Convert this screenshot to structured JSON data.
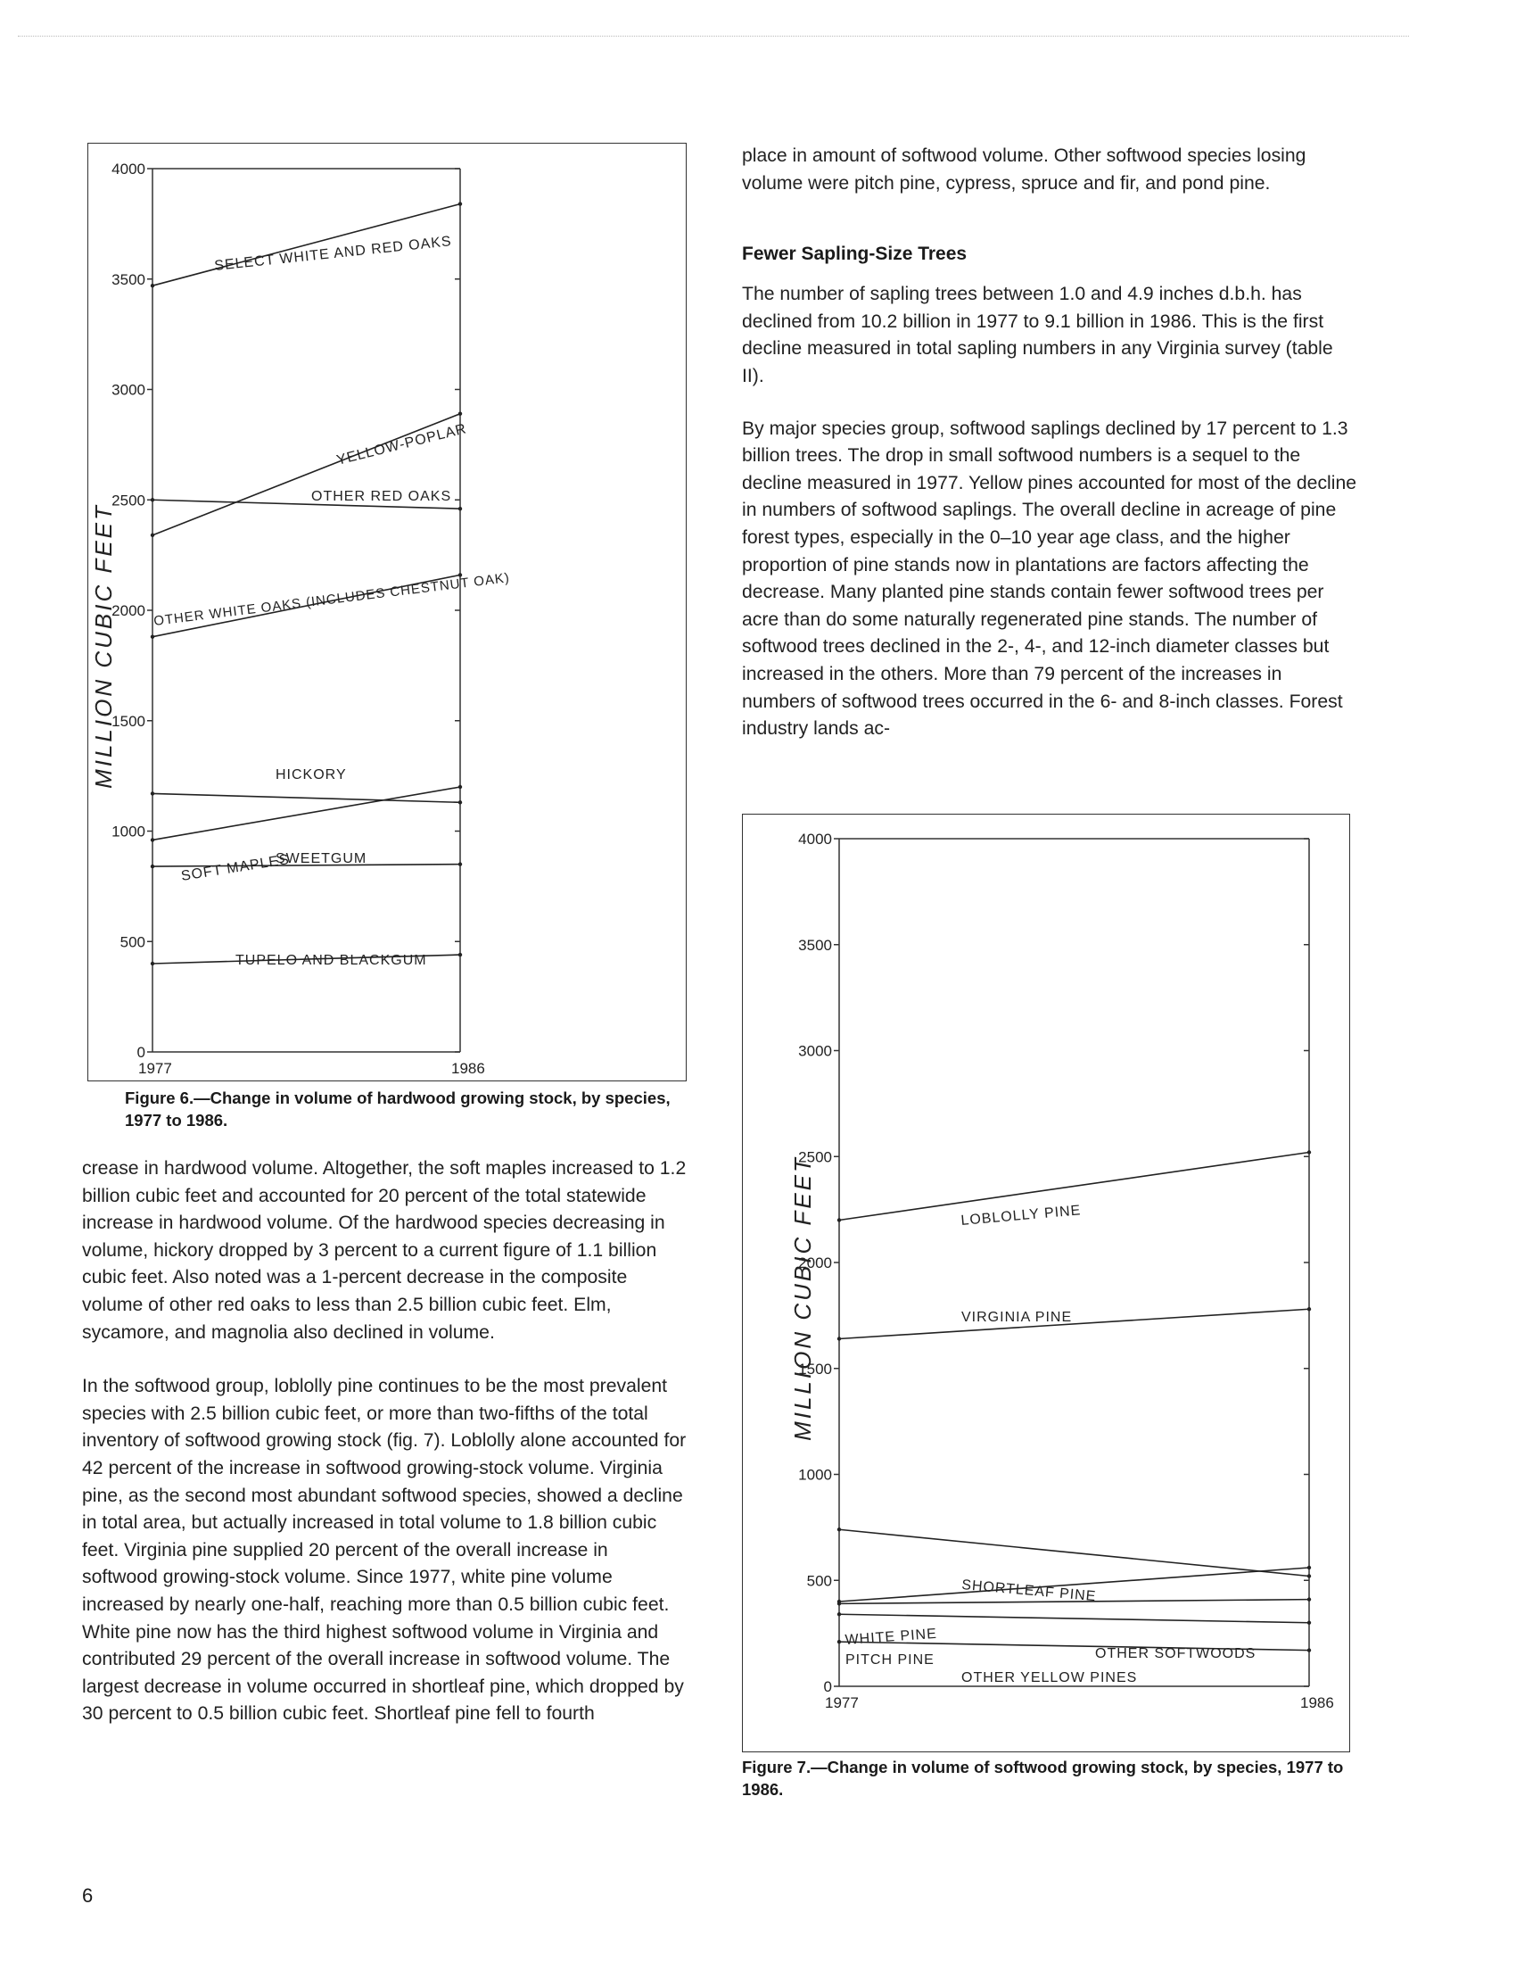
{
  "page_number": "6",
  "figure6": {
    "caption": "Figure 6.—Change in volume of hardwood growing stock, by species, 1977 to 1986."
  },
  "figure7": {
    "caption": "Figure 7.—Change in volume of softwood growing stock, by species, 1977 to 1986."
  },
  "left_column": {
    "paragraphs": [
      "crease in hardwood volume. Altogether, the soft maples increased to 1.2 billion cubic feet and accounted for 20 percent of the total statewide increase in hardwood volume. Of the hardwood species decreasing in volume, hickory dropped by 3 percent to a current figure of 1.1 billion cubic feet. Also noted was a 1-percent decrease in the composite volume of other red oaks to less than 2.5 billion cubic feet. Elm, sycamore, and magnolia also declined in volume.",
      "In the softwood group, loblolly pine continues to be the most prevalent species with 2.5 billion cubic feet, or more than two-fifths of the total inventory of softwood growing stock (fig. 7). Loblolly alone accounted for 42 percent of the increase in softwood growing-stock volume. Virginia pine, as the second most abundant softwood species, showed a decline in total area, but actually increased in total volume to 1.8 billion cubic feet. Virginia pine supplied 20 percent of the overall increase in softwood growing-stock volume. Since 1977, white pine volume increased by nearly one-half, reaching more than 0.5 billion cubic feet. White pine now has the third highest softwood volume in Virginia and contributed 29 percent of the overall increase in softwood volume. The largest decrease in volume occurred in shortleaf pine, which dropped by 30 percent to 0.5 billion cubic feet. Shortleaf pine fell to fourth"
    ]
  },
  "right_column": {
    "paragraph_top": "place in amount of softwood volume. Other softwood species losing volume were pitch pine, cypress, spruce and fir, and pond pine.",
    "subhead": "Fewer Sapling-Size Trees",
    "paragraphs": [
      "The number of sapling trees between 1.0 and 4.9 inches d.b.h. has declined from 10.2 billion in 1977 to 9.1 billion in 1986. This is the first decline measured in total sapling numbers in any Virginia survey (table II).",
      "By major species group, softwood saplings declined by 17 percent to 1.3 billion trees. The drop in small softwood numbers is a sequel to the decline measured in 1977. Yellow pines accounted for most of the decline in numbers of softwood saplings. The overall decline in acreage of pine forest types, especially in the 0–10 year age class, and the higher proportion of pine stands now in plantations are factors affecting the decrease. Many planted pine stands contain fewer softwood trees per acre than do some naturally regenerated pine stands. The number of softwood trees declined in the 2-, 4-, and 12-inch diameter classes but increased in the others. More than 79 percent of the increases in numbers of softwood trees occurred in the 6- and 8-inch classes. Forest industry lands ac-"
    ]
  },
  "chart_data": [
    {
      "type": "line",
      "ylabel": "MILLION CUBIC FEET",
      "x": [
        "1977",
        "1986"
      ],
      "ylim": [
        0,
        4000
      ],
      "yticks": [
        0,
        500,
        1000,
        1500,
        2000,
        2500,
        3000,
        3500,
        4000
      ],
      "grid": false,
      "series": [
        {
          "name": "SELECT WHITE AND RED OAKS",
          "values": [
            3470,
            3840
          ]
        },
        {
          "name": "YELLOW-POPLAR",
          "values": [
            2340,
            2890
          ]
        },
        {
          "name": "OTHER RED OAKS",
          "values": [
            2500,
            2460
          ]
        },
        {
          "name": "OTHER WHITE OAKS (INCLUDES CHESTNUT OAK)",
          "values": [
            1880,
            2160
          ]
        },
        {
          "name": "HICKORY",
          "values": [
            1170,
            1130
          ]
        },
        {
          "name": "SOFT MAPLES",
          "values": [
            960,
            1200
          ]
        },
        {
          "name": "SWEETGUM",
          "values": [
            840,
            850
          ]
        },
        {
          "name": "TUPELO AND BLACKGUM",
          "values": [
            400,
            440
          ]
        }
      ]
    },
    {
      "type": "line",
      "ylabel": "MILLION CUBIC FEET",
      "x": [
        "1977",
        "1986"
      ],
      "ylim": [
        0,
        4000
      ],
      "yticks": [
        0,
        500,
        1000,
        1500,
        2000,
        2500,
        3000,
        3500,
        4000
      ],
      "grid": false,
      "series": [
        {
          "name": "LOBLOLLY PINE",
          "values": [
            2200,
            2520
          ]
        },
        {
          "name": "VIRGINIA PINE",
          "values": [
            1640,
            1780
          ]
        },
        {
          "name": "SHORTLEAF PINE",
          "values": [
            740,
            520
          ]
        },
        {
          "name": "WHITE PINE",
          "values": [
            400,
            560
          ]
        },
        {
          "name": "OTHER SOFTWOODS",
          "values": [
            390,
            410
          ]
        },
        {
          "name": "PITCH PINE",
          "values": [
            340,
            300
          ]
        },
        {
          "name": "OTHER YELLOW PINES",
          "values": [
            210,
            170
          ]
        }
      ],
      "stacked_band_labels": [
        "WHITE PINE",
        "PITCH PINE",
        "OTHER SOFTWOODS",
        "OTHER YELLOW PINES"
      ]
    }
  ]
}
